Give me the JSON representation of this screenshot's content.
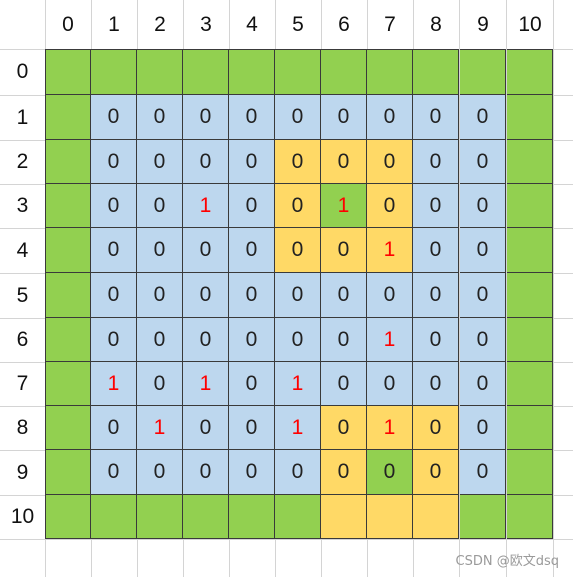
{
  "headers": {
    "cols": [
      "0",
      "1",
      "2",
      "3",
      "4",
      "5",
      "6",
      "7",
      "8",
      "9",
      "10"
    ],
    "rows": [
      "0",
      "1",
      "2",
      "3",
      "4",
      "5",
      "6",
      "7",
      "8",
      "9",
      "10"
    ]
  },
  "colors": {
    "G": "#92d050",
    "B": "#bdd7ee",
    "Y": "#ffd966",
    "ones_text": "#ff0000",
    "zero_text": "#222222"
  },
  "grid": {
    "fills": [
      "GGGGGGGGGGG",
      "GBBBBBBBBBG",
      "GBBBBYYYBBG",
      "GBBBBYGYBBG",
      "GBBBBYYYBBG",
      "GBBBBBBBBBG",
      "GBBBBBBBBBG",
      "GBBBBBBBBBG",
      "GBBBBBYYYBG",
      "GBBBBBYGYBG",
      "GGGGGGYYYGG"
    ],
    "values": [
      [
        null,
        null,
        null,
        null,
        null,
        null,
        null,
        null,
        null,
        null,
        null
      ],
      [
        null,
        "0",
        "0",
        "0",
        "0",
        "0",
        "0",
        "0",
        "0",
        "0",
        null
      ],
      [
        null,
        "0",
        "0",
        "0",
        "0",
        "0",
        "0",
        "0",
        "0",
        "0",
        null
      ],
      [
        null,
        "0",
        "0",
        "1",
        "0",
        "0",
        "1",
        "0",
        "0",
        "0",
        null
      ],
      [
        null,
        "0",
        "0",
        "0",
        "0",
        "0",
        "0",
        "1",
        "0",
        "0",
        null
      ],
      [
        null,
        "0",
        "0",
        "0",
        "0",
        "0",
        "0",
        "0",
        "0",
        "0",
        null
      ],
      [
        null,
        "0",
        "0",
        "0",
        "0",
        "0",
        "0",
        "1",
        "0",
        "0",
        null
      ],
      [
        null,
        "1",
        "0",
        "1",
        "0",
        "1",
        "0",
        "0",
        "0",
        "0",
        null
      ],
      [
        null,
        "0",
        "1",
        "0",
        "0",
        "1",
        "0",
        "1",
        "0",
        "0",
        null
      ],
      [
        null,
        "0",
        "0",
        "0",
        "0",
        "0",
        "0",
        "0",
        "0",
        "0",
        null
      ],
      [
        null,
        null,
        null,
        null,
        null,
        null,
        null,
        null,
        null,
        null,
        null
      ]
    ]
  },
  "watermark": "CSDN @欧文dsq"
}
